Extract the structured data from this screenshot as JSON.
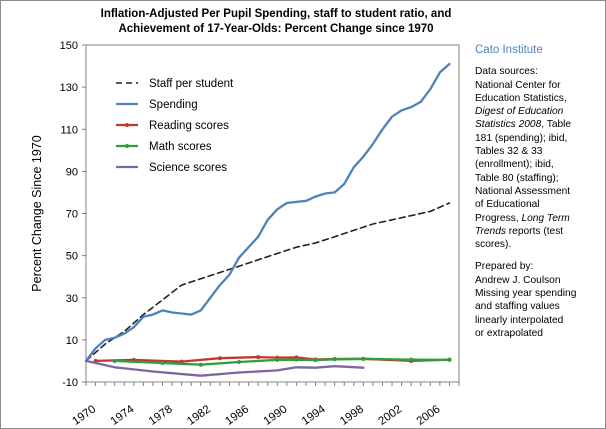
{
  "chart_data": {
    "type": "line",
    "title": "Inflation-Adjusted Per Pupil Spending, staff to student ratio, and",
    "title_line2": "Achievement of 17-Year-Olds:  Percent Change since 1970",
    "xlabel": "",
    "ylabel": "Percent Change Since 1970",
    "xlim": [
      1970,
      2009
    ],
    "ylim": [
      -10,
      150
    ],
    "xticks": [
      1970,
      1974,
      1978,
      1982,
      1986,
      1990,
      1994,
      1998,
      2002,
      2006
    ],
    "yticks": [
      -10,
      10,
      30,
      50,
      70,
      90,
      110,
      130,
      150
    ],
    "grid": false,
    "legend_position": "top-left",
    "series": [
      {
        "name": "Staff per student",
        "color": "#222222",
        "style": "dashed",
        "x": [
          1970,
          1972,
          1974,
          1976,
          1978,
          1980,
          1982,
          1984,
          1986,
          1988,
          1990,
          1992,
          1994,
          1996,
          1998,
          2000,
          2002,
          2004,
          2006,
          2008
        ],
        "y": [
          0,
          8,
          14,
          22,
          29,
          36,
          39,
          42,
          45,
          48,
          51,
          54,
          56,
          59,
          62,
          65,
          67,
          69,
          71,
          75
        ]
      },
      {
        "name": "Spending",
        "color": "#4f81bd",
        "style": "solid",
        "x": [
          1970,
          1971,
          1972,
          1973,
          1974,
          1975,
          1976,
          1977,
          1978,
          1979,
          1980,
          1981,
          1982,
          1983,
          1984,
          1985,
          1986,
          1987,
          1988,
          1989,
          1990,
          1991,
          1992,
          1993,
          1994,
          1995,
          1996,
          1997,
          1998,
          1999,
          2000,
          2001,
          2002,
          2003,
          2004,
          2005,
          2006,
          2007,
          2008
        ],
        "y": [
          0,
          6,
          10,
          11,
          13,
          16,
          21,
          22,
          24,
          23,
          22.5,
          22,
          24,
          30,
          36,
          41,
          49,
          54,
          59,
          67,
          72,
          75,
          75.5,
          76,
          78,
          79.5,
          80,
          84,
          92,
          97,
          103,
          110,
          116,
          119,
          120.5,
          123,
          129,
          137,
          141
        ]
      },
      {
        "name": "Reading scores",
        "color": "#c0392b",
        "style": "solid",
        "x": [
          1971,
          1975,
          1980,
          1984,
          1988,
          1990,
          1992,
          1994,
          1996,
          1999,
          2004,
          2008
        ],
        "y": [
          0,
          0.5,
          -0.3,
          1.3,
          1.8,
          1.6,
          1.7,
          0.7,
          0.9,
          1,
          0,
          0.6
        ]
      },
      {
        "name": "Math scores",
        "color": "#2e9e3e",
        "style": "solid",
        "x": [
          1973,
          1978,
          1982,
          1986,
          1990,
          1992,
          1994,
          1996,
          1999,
          2004,
          2008
        ],
        "y": [
          0,
          -1,
          -1.8,
          -0.5,
          0.5,
          0.6,
          0.4,
          0.8,
          1,
          0.6,
          0.5
        ]
      },
      {
        "name": "Science scores",
        "color": "#8064a2",
        "style": "solid",
        "x": [
          1970,
          1973,
          1977,
          1982,
          1986,
          1990,
          1992,
          1994,
          1996,
          1999
        ],
        "y": [
          0,
          -3,
          -5,
          -7,
          -5.5,
          -4.5,
          -3,
          -3.2,
          -2.5,
          -3.2
        ]
      }
    ]
  },
  "sidebar": {
    "org": "Cato Institute",
    "sources_lines": [
      {
        "text": "Data sources:",
        "italic": false
      },
      {
        "text": "National Center for",
        "italic": false
      },
      {
        "text": "Education Statistics,",
        "italic": false
      },
      {
        "text": "Digest of Education",
        "italic": true
      },
      {
        "text": "Statistics 2008",
        "italic": true,
        "suffix": ", Table"
      },
      {
        "text": "181 (spending); ibid,",
        "italic": false
      },
      {
        "text": "Tables 32 & 33",
        "italic": false
      },
      {
        "text": "(enrollment); ibid,",
        "italic": false
      },
      {
        "text": "Table 80 (staffing);",
        "italic": false
      },
      {
        "text": "National Assessment",
        "italic": false
      },
      {
        "text": "of Educational",
        "italic": false
      },
      {
        "text": "Progress, ",
        "italic": false,
        "italic_suffix": "Long Term"
      },
      {
        "text": "Trends",
        "italic": true,
        "suffix": " reports (test"
      },
      {
        "text": "scores).",
        "italic": false
      }
    ],
    "prepared_lines": [
      "Prepared by:",
      "Andrew J. Coulson",
      "Missing year spending",
      "and staffing values",
      "linearly interpolated",
      "or extrapolated"
    ]
  }
}
